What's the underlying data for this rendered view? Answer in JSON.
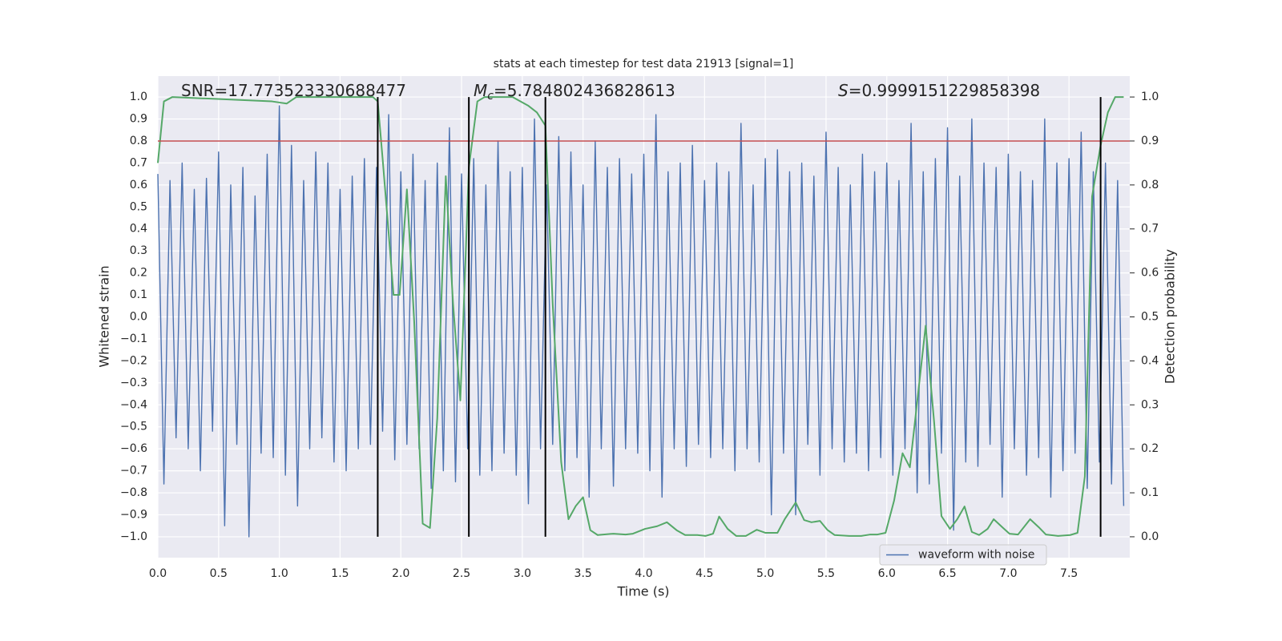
{
  "chart_data": {
    "type": "line",
    "title": "stats at each timestep for test data 21913 [signal=1]",
    "xlabel": "Time (s)",
    "ylabel": "Whitened strain",
    "y2label": "Detection probability",
    "xlim": [
      0,
      8
    ],
    "ylim": [
      -1.095,
      1.095
    ],
    "y2lim": [
      -0.0475,
      1.0475
    ],
    "grid": true,
    "legend": "lower right",
    "xticks": [
      {
        "value": 0,
        "label": "0.0"
      },
      {
        "value": 0.5,
        "label": "0.5"
      },
      {
        "value": 1,
        "label": "1.0"
      },
      {
        "value": 1.5,
        "label": "1.5"
      },
      {
        "value": 2,
        "label": "2.0"
      },
      {
        "value": 2.5,
        "label": "2.5"
      },
      {
        "value": 3,
        "label": "3.0"
      },
      {
        "value": 3.5,
        "label": "3.5"
      },
      {
        "value": 4,
        "label": "4.0"
      },
      {
        "value": 4.5,
        "label": "4.5"
      },
      {
        "value": 5,
        "label": "5.0"
      },
      {
        "value": 5.5,
        "label": "5.5"
      },
      {
        "value": 6,
        "label": "6.0"
      },
      {
        "value": 6.5,
        "label": "6.5"
      },
      {
        "value": 7,
        "label": "7.0"
      },
      {
        "value": 7.5,
        "label": "7.5"
      }
    ],
    "yticks": [
      {
        "value": 1,
        "label": "1.0"
      },
      {
        "value": 0.9,
        "label": "0.9"
      },
      {
        "value": 0.8,
        "label": "0.8"
      },
      {
        "value": 0.7,
        "label": "0.7"
      },
      {
        "value": 0.6,
        "label": "0.6"
      },
      {
        "value": 0.5,
        "label": "0.5"
      },
      {
        "value": 0.4,
        "label": "0.4"
      },
      {
        "value": 0.3,
        "label": "0.3"
      },
      {
        "value": 0.2,
        "label": "0.2"
      },
      {
        "value": 0.1,
        "label": "0.1"
      },
      {
        "value": 0,
        "label": "0.0"
      },
      {
        "value": -0.1,
        "label": "−0.1"
      },
      {
        "value": -0.2,
        "label": "−0.2"
      },
      {
        "value": -0.3,
        "label": "−0.3"
      },
      {
        "value": -0.4,
        "label": "−0.4"
      },
      {
        "value": -0.5,
        "label": "−0.5"
      },
      {
        "value": -0.6,
        "label": "−0.6"
      },
      {
        "value": -0.7,
        "label": "−0.7"
      },
      {
        "value": -0.8,
        "label": "−0.8"
      },
      {
        "value": -0.9,
        "label": "−0.9"
      },
      {
        "value": -1,
        "label": "−1.0"
      }
    ],
    "y2ticks": [
      {
        "value": 1,
        "label": "1.0"
      },
      {
        "value": 0.9,
        "label": "0.9"
      },
      {
        "value": 0.8,
        "label": "0.8"
      },
      {
        "value": 0.7,
        "label": "0.7"
      },
      {
        "value": 0.6,
        "label": "0.6"
      },
      {
        "value": 0.5,
        "label": "0.5"
      },
      {
        "value": 0.4,
        "label": "0.4"
      },
      {
        "value": 0.3,
        "label": "0.3"
      },
      {
        "value": 0.2,
        "label": "0.2"
      },
      {
        "value": 0.1,
        "label": "0.1"
      },
      {
        "value": 0,
        "label": "0.0"
      }
    ],
    "annotations": [
      {
        "text": "SNR=17.773523330688477"
      },
      {
        "symbol": "M",
        "subscript": "c",
        "text": "=5.784802436828613"
      },
      {
        "symbol": "S",
        "text": "=0.9999151229858398"
      }
    ],
    "hline": {
      "y": 0.8,
      "color": "#c44e52"
    },
    "vlines": {
      "x": [
        1.81,
        2.56,
        3.19,
        7.76
      ],
      "ymin": -1,
      "ymax": 1,
      "color": "#000000"
    },
    "series": [
      {
        "name": "waveform with noise",
        "color": "#4c72b0",
        "x": [
          0,
          0.05,
          0.1,
          0.15,
          0.2,
          0.25,
          0.3,
          0.35,
          0.4,
          0.45,
          0.5,
          0.55,
          0.6,
          0.65,
          0.7,
          0.75,
          0.8,
          0.85,
          0.9,
          0.95,
          1,
          1.05,
          1.1,
          1.15,
          1.2,
          1.25,
          1.3,
          1.35,
          1.4,
          1.45,
          1.5,
          1.55,
          1.6,
          1.65,
          1.7,
          1.75,
          1.8,
          1.85,
          1.9,
          1.95,
          2,
          2.05,
          2.1,
          2.15,
          2.2,
          2.25,
          2.3,
          2.35,
          2.4,
          2.45,
          2.5,
          2.55,
          2.6,
          2.65,
          2.7,
          2.75,
          2.8,
          2.85,
          2.9,
          2.95,
          3,
          3.05,
          3.1,
          3.15,
          3.2,
          3.25,
          3.3,
          3.35,
          3.4,
          3.45,
          3.5,
          3.55,
          3.6,
          3.65,
          3.7,
          3.75,
          3.8,
          3.85,
          3.9,
          3.95,
          4,
          4.05,
          4.1,
          4.15,
          4.2,
          4.25,
          4.3,
          4.35,
          4.4,
          4.45,
          4.5,
          4.55,
          4.6,
          4.65,
          4.7,
          4.75,
          4.8,
          4.85,
          4.9,
          4.95,
          5,
          5.05,
          5.1,
          5.15,
          5.2,
          5.25,
          5.3,
          5.35,
          5.4,
          5.45,
          5.5,
          5.55,
          5.6,
          5.65,
          5.7,
          5.75,
          5.8,
          5.85,
          5.9,
          5.95,
          6,
          6.05,
          6.1,
          6.15,
          6.2,
          6.25,
          6.3,
          6.35,
          6.4,
          6.45,
          6.5,
          6.55,
          6.6,
          6.65,
          6.7,
          6.75,
          6.8,
          6.85,
          6.9,
          6.95,
          7,
          7.05,
          7.1,
          7.15,
          7.2,
          7.25,
          7.3,
          7.35,
          7.4,
          7.45,
          7.5,
          7.55,
          7.6,
          7.65,
          7.7,
          7.75,
          7.8,
          7.85,
          7.9,
          7.95
        ],
        "values": [
          0.65,
          -0.76,
          0.62,
          -0.55,
          0.7,
          -0.6,
          0.58,
          -0.7,
          0.63,
          -0.52,
          0.75,
          -0.95,
          0.6,
          -0.58,
          0.68,
          -1.0,
          0.55,
          -0.62,
          0.74,
          -0.64,
          0.96,
          -0.72,
          0.78,
          -0.86,
          0.62,
          -0.6,
          0.75,
          -0.55,
          0.7,
          -0.66,
          0.58,
          -0.7,
          0.64,
          -0.6,
          0.72,
          -0.58,
          0.68,
          -0.52,
          0.92,
          -0.65,
          0.66,
          -0.58,
          0.74,
          -0.6,
          0.62,
          -0.78,
          0.7,
          -0.7,
          0.86,
          -0.75,
          0.65,
          -0.6,
          0.72,
          -0.72,
          0.6,
          -0.7,
          0.8,
          -0.62,
          0.66,
          -0.72,
          0.68,
          -0.85,
          0.9,
          -0.6,
          0.6,
          -0.58,
          0.82,
          -0.7,
          0.75,
          -0.64,
          0.6,
          -0.82,
          0.8,
          -0.6,
          0.68,
          -0.77,
          0.72,
          -0.6,
          0.65,
          -0.62,
          0.74,
          -0.7,
          0.92,
          -0.82,
          0.66,
          -0.6,
          0.7,
          -0.68,
          0.78,
          -0.58,
          0.62,
          -0.64,
          0.7,
          -0.6,
          0.66,
          -0.7,
          0.88,
          -0.6,
          0.6,
          -0.66,
          0.72,
          -0.9,
          0.76,
          -0.62,
          0.66,
          -0.9,
          0.7,
          -0.58,
          0.64,
          -0.72,
          0.84,
          -0.6,
          0.68,
          -0.66,
          0.6,
          -0.62,
          0.74,
          -0.7,
          0.66,
          -0.64,
          0.7,
          -0.72,
          0.62,
          -0.6,
          0.88,
          -0.8,
          0.66,
          -0.76,
          0.72,
          -0.62,
          0.86,
          -0.97,
          0.64,
          -0.66,
          0.9,
          -0.68,
          0.7,
          -0.58,
          0.68,
          -0.82,
          0.74,
          -0.6,
          0.66,
          -0.72,
          0.62,
          -0.64,
          0.9,
          -0.82,
          0.7,
          -0.7,
          0.72,
          -0.62,
          0.84,
          -0.78,
          0.66,
          -0.66,
          0.7,
          -0.76,
          0.62,
          -0.86
        ]
      },
      {
        "color": "#55a868",
        "axis": "y2",
        "x": [
          0,
          0.05,
          0.12,
          0.94,
          1.06,
          1.14,
          1.77,
          1.81,
          1.85,
          1.9,
          1.94,
          1.99,
          2.05,
          2.11,
          2.18,
          2.24,
          2.3,
          2.37,
          2.43,
          2.49,
          2.56,
          2.63,
          2.69,
          2.92,
          3.05,
          3.12,
          3.19,
          3.25,
          3.32,
          3.38,
          3.44,
          3.5,
          3.56,
          3.62,
          3.75,
          3.85,
          3.91,
          4.01,
          4.11,
          4.19,
          4.27,
          4.34,
          4.44,
          4.51,
          4.57,
          4.62,
          4.69,
          4.76,
          4.84,
          4.93,
          5,
          5.1,
          5.16,
          5.25,
          5.32,
          5.38,
          5.45,
          5.51,
          5.57,
          5.69,
          5.79,
          5.86,
          5.92,
          5.99,
          6.06,
          6.13,
          6.19,
          6.32,
          6.39,
          6.45,
          6.52,
          6.58,
          6.64,
          6.7,
          6.76,
          6.83,
          6.88,
          6.95,
          7.01,
          7.08,
          7.18,
          7.25,
          7.31,
          7.41,
          7.51,
          7.57,
          7.63,
          7.69,
          7.76,
          7.82,
          7.88,
          7.95
        ],
        "values": [
          0.85,
          0.99,
          1.0,
          0.99,
          0.985,
          1.0,
          1.0,
          0.99,
          0.86,
          0.69,
          0.55,
          0.55,
          0.79,
          0.49,
          0.03,
          0.02,
          0.27,
          0.82,
          0.53,
          0.31,
          0.84,
          0.99,
          1.0,
          1.0,
          0.98,
          0.965,
          0.935,
          0.53,
          0.17,
          0.04,
          0.07,
          0.09,
          0.015,
          0.004,
          0.007,
          0.005,
          0.007,
          0.018,
          0.024,
          0.033,
          0.015,
          0.004,
          0.004,
          0.002,
          0.007,
          0.046,
          0.018,
          0.002,
          0.002,
          0.016,
          0.009,
          0.009,
          0.04,
          0.078,
          0.038,
          0.033,
          0.036,
          0.016,
          0.004,
          0.002,
          0.002,
          0.005,
          0.005,
          0.009,
          0.082,
          0.19,
          0.158,
          0.48,
          0.26,
          0.047,
          0.018,
          0.04,
          0.069,
          0.011,
          0.004,
          0.018,
          0.04,
          0.022,
          0.007,
          0.005,
          0.04,
          0.022,
          0.005,
          0.002,
          0.004,
          0.009,
          0.137,
          0.774,
          0.89,
          0.965,
          1.0,
          1.0
        ]
      }
    ]
  }
}
